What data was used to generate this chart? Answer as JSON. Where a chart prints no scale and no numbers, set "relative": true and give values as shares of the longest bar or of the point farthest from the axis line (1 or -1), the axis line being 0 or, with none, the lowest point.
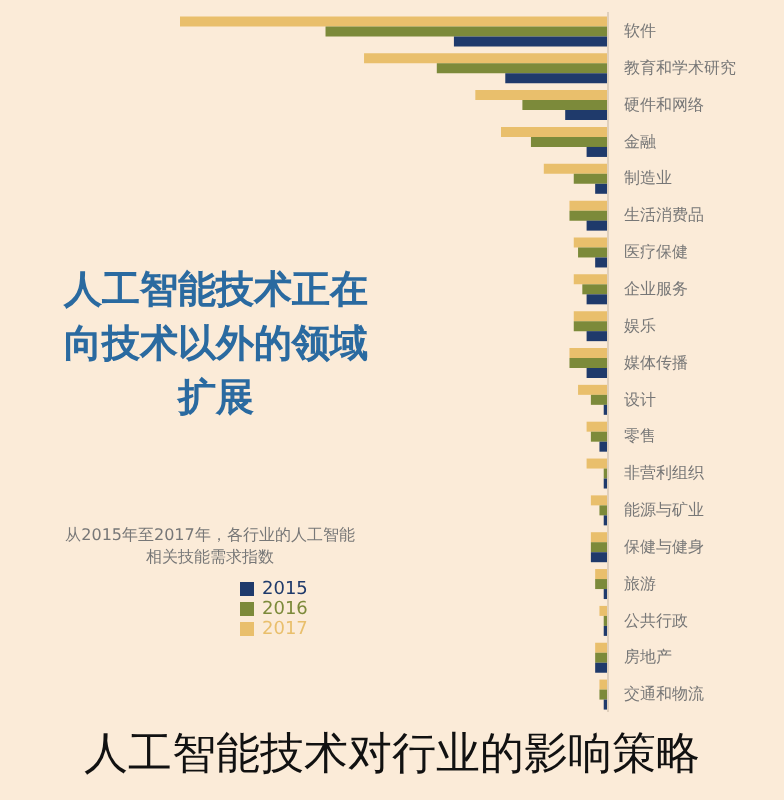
{
  "chart_data": {
    "type": "bar",
    "orientation": "horizontal",
    "relative": true,
    "title": "人工智能技术正在向技术以外的领域扩展",
    "subtitle": "从2015年至2017年，各行业的人工智能相关技能需求指数",
    "annotations": [
      "人工智能技术对行业的影响策略"
    ],
    "legend": "left",
    "categories": [
      "软件",
      "教育和学术研究",
      "硬件和网络",
      "金融",
      "制造业",
      "生活消费品",
      "医疗保健",
      "企业服务",
      "娱乐",
      "媒体传播",
      "设计",
      "零售",
      "非营利组织",
      "能源与矿业",
      "保健与健身",
      "旅游",
      "公共行政",
      "房地产",
      "交通和物流"
    ],
    "series": [
      {
        "name": "2017",
        "color": "#e9bf6c",
        "values": [
          1,
          0.57,
          0.31,
          0.25,
          0.15,
          0.09,
          0.08,
          0.08,
          0.08,
          0.09,
          0.07,
          0.05,
          0.05,
          0.04,
          0.04,
          0.03,
          0.02,
          0.03,
          0.02
        ]
      },
      {
        "name": "2016",
        "color": "#7c8a3a",
        "values": [
          0.66,
          0.4,
          0.2,
          0.18,
          0.08,
          0.09,
          0.07,
          0.06,
          0.08,
          0.09,
          0.04,
          0.04,
          0.01,
          0.02,
          0.04,
          0.03,
          0.01,
          0.03,
          0.02
        ]
      },
      {
        "name": "2015",
        "color": "#1f3a6b",
        "values": [
          0.36,
          0.24,
          0.1,
          0.05,
          0.03,
          0.05,
          0.03,
          0.05,
          0.05,
          0.05,
          0.01,
          0.02,
          0.01,
          0.01,
          0.04,
          0.01,
          0.01,
          0.03,
          0.01
        ]
      }
    ]
  }
}
